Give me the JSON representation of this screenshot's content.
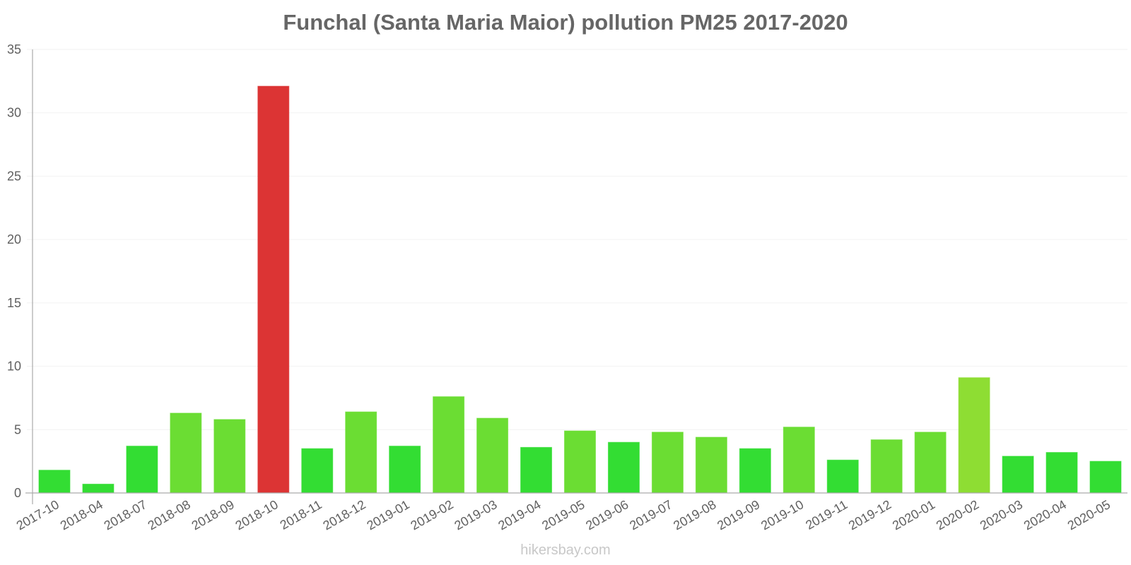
{
  "chart_data": {
    "type": "bar",
    "title": "Funchal (Santa Maria Maior) pollution PM25 2017-2020",
    "xlabel": "",
    "ylabel": "",
    "ylim": [
      0,
      35
    ],
    "yticks": [
      0,
      5,
      10,
      15,
      20,
      25,
      30,
      35
    ],
    "grid": true,
    "legend": null,
    "categories": [
      "2017-10",
      "2018-04",
      "2018-07",
      "2018-08",
      "2018-09",
      "2018-10",
      "2018-11",
      "2018-12",
      "2019-01",
      "2019-02",
      "2019-03",
      "2019-04",
      "2019-05",
      "2019-06",
      "2019-07",
      "2019-08",
      "2019-09",
      "2019-10",
      "2019-11",
      "2019-12",
      "2020-01",
      "2020-02",
      "2020-03",
      "2020-04",
      "2020-05"
    ],
    "values": [
      1.8,
      0.7,
      3.7,
      6.3,
      5.8,
      32.1,
      3.5,
      6.4,
      3.7,
      7.6,
      5.9,
      3.6,
      4.9,
      4.0,
      4.8,
      4.4,
      3.5,
      5.2,
      2.6,
      4.2,
      4.8,
      9.1,
      2.9,
      3.2,
      2.5
    ],
    "bar_colors": [
      "#33dd33",
      "#33dd33",
      "#33dd33",
      "#6bdd33",
      "#6bdd33",
      "#dc3434",
      "#33dd33",
      "#6bdd33",
      "#33dd33",
      "#6bdd33",
      "#6bdd33",
      "#33dd33",
      "#6bdd33",
      "#33dd33",
      "#6bdd33",
      "#6bdd33",
      "#33dd33",
      "#6bdd33",
      "#33dd33",
      "#6bdd33",
      "#6bdd33",
      "#8edd33",
      "#33dd33",
      "#33dd33",
      "#33dd33"
    ]
  },
  "footer": {
    "watermark": "hikersbay.com"
  }
}
